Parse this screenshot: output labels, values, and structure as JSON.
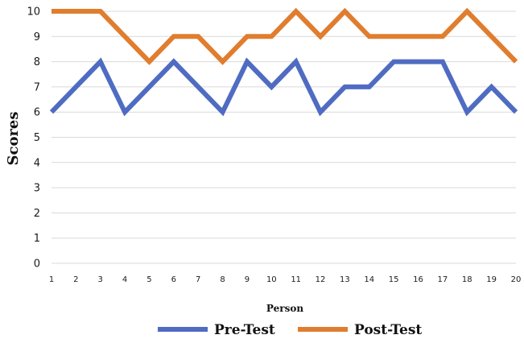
{
  "chart_data": {
    "type": "line",
    "x": [
      1,
      2,
      3,
      4,
      5,
      6,
      7,
      8,
      9,
      10,
      11,
      12,
      13,
      14,
      15,
      16,
      17,
      18,
      19,
      20
    ],
    "series": [
      {
        "name": "Pre-Test",
        "color": "#4f6cc2",
        "values": [
          6,
          7,
          8,
          6,
          7,
          8,
          7,
          6,
          8,
          7,
          8,
          6,
          7,
          7,
          8,
          8,
          8,
          6,
          7,
          6
        ]
      },
      {
        "name": "Post-Test",
        "color": "#e07d2e",
        "values": [
          10,
          10,
          10,
          9,
          8,
          9,
          9,
          8,
          9,
          9,
          10,
          9,
          10,
          9,
          9,
          9,
          9,
          10,
          9,
          8
        ]
      }
    ],
    "xlabel": "Person",
    "ylabel": "Scores",
    "ylim": [
      0,
      10
    ],
    "yticks": [
      0,
      1,
      2,
      3,
      4,
      5,
      6,
      7,
      8,
      9,
      10
    ],
    "grid": true,
    "legend": "bottom"
  }
}
